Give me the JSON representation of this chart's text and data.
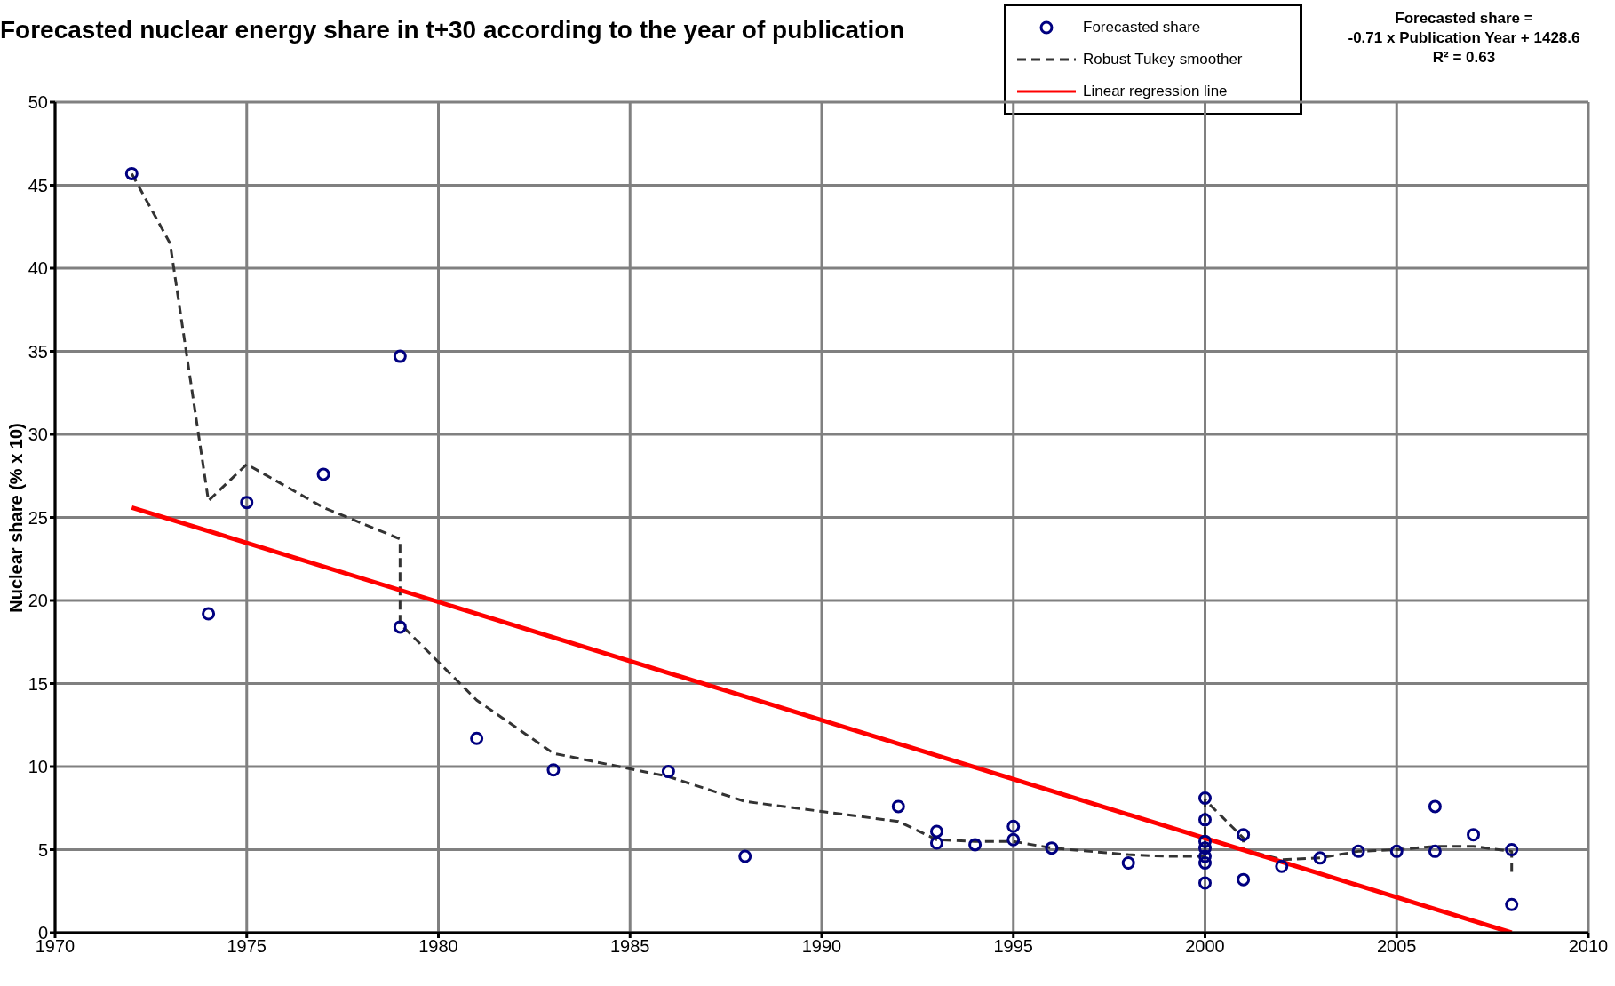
{
  "chart_data": {
    "type": "scatter",
    "title": "Forecasted nuclear energy share in t+30 according to the year of publication",
    "ylabel": "Nuclear share (% x 10)",
    "annotations": [
      "Forecasted share =",
      "-0.71 x Publication Year + 1428.6",
      "R² = 0.63"
    ],
    "xlim": [
      1970,
      2010
    ],
    "xticks": [
      1970,
      1975,
      1980,
      1985,
      1990,
      1995,
      2000,
      2005,
      2010
    ],
    "ylim": [
      0,
      50
    ],
    "yticks": [
      0,
      5,
      10,
      15,
      20,
      25,
      30,
      35,
      40,
      45,
      50
    ],
    "grid": true,
    "legend": "top right",
    "series": [
      {
        "name": "Forecasted share",
        "color": "#000080",
        "marker": "circle",
        "x": [
          1972,
          1974,
          1975,
          1977,
          1979,
          1979,
          1981,
          1983,
          1986,
          1988,
          1992,
          1993,
          1993,
          1994,
          1995,
          1995,
          1996,
          1998,
          2000,
          2000,
          2000,
          2000,
          2000,
          2000,
          2000,
          2001,
          2001,
          2002,
          2003,
          2004,
          2005,
          2006,
          2006,
          2007,
          2008,
          2008
        ],
        "values": [
          45.7,
          19.2,
          25.9,
          27.6,
          34.7,
          18.4,
          11.7,
          9.8,
          9.7,
          4.6,
          7.6,
          6.1,
          5.4,
          5.3,
          6.4,
          5.6,
          5.1,
          4.2,
          8.1,
          6.8,
          5.5,
          5.1,
          4.6,
          4.2,
          3.0,
          5.9,
          3.2,
          4.0,
          4.5,
          4.9,
          4.9,
          7.6,
          4.9,
          5.9,
          5.0,
          1.7
        ]
      },
      {
        "name": "Robust Tukey smoother",
        "type": "line",
        "color": "#333333",
        "line_style": "dashed",
        "marker": "none",
        "x": [
          1972,
          1973,
          1974,
          1975,
          1977,
          1979,
          1979,
          1981,
          1983,
          1986,
          1988,
          1990,
          1991,
          1992,
          1993,
          1994,
          1995,
          1996,
          1997,
          1998,
          1999,
          2000,
          2000,
          2001,
          2001,
          2002,
          2003,
          2004,
          2005,
          2006,
          2007,
          2008,
          2008
        ],
        "values": [
          45.7,
          41.5,
          26,
          28.2,
          25.6,
          23.7,
          18.6,
          14,
          10.8,
          9.4,
          7.9,
          7.3,
          7.0,
          6.7,
          5.6,
          5.5,
          5.5,
          5.1,
          4.9,
          4.7,
          4.6,
          4.6,
          8.0,
          5.7,
          5.0,
          4.4,
          4.5,
          4.9,
          5.0,
          5.2,
          5.2,
          4.9,
          3.4
        ]
      },
      {
        "name": "Linear regression line",
        "type": "line",
        "color": "#ff0000",
        "line_style": "solid",
        "marker": "none",
        "x": [
          1972,
          2008
        ],
        "values": [
          25.6,
          0
        ]
      }
    ]
  }
}
